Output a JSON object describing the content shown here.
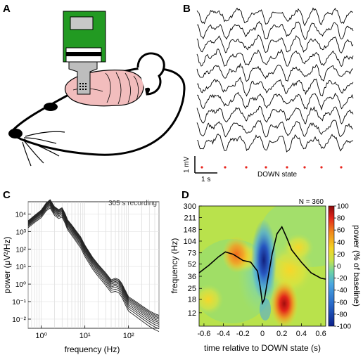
{
  "panels": {
    "a": {
      "letter": "A"
    },
    "b": {
      "letter": "B",
      "scale_y": "1 mV",
      "scale_x": "1 s",
      "event_label": "DOWN state",
      "trace_count": 10,
      "marker_color": "#e8231c"
    },
    "c": {
      "letter": "C"
    },
    "d": {
      "letter": "D"
    }
  },
  "chart_data": [
    {
      "type": "line",
      "panel": "C",
      "annotation": "305 s recording",
      "xlabel": "frequency (Hz)",
      "ylabel": "power (μV²/Hz)",
      "x_scale": "log",
      "y_scale": "log",
      "xlim": [
        0.5,
        500
      ],
      "ylim": [
        0.003,
        50000
      ],
      "xticks": [
        1,
        10,
        100
      ],
      "xtick_labels": [
        "10⁰",
        "10¹",
        "10²"
      ],
      "yticks": [
        0.01,
        0.1,
        1,
        10,
        100,
        1000,
        10000
      ],
      "ytick_labels": [
        "10⁻²",
        "10⁻¹",
        "10⁰",
        "10¹",
        "10²",
        "10³",
        "10⁴"
      ],
      "grid": true,
      "series_count": 10,
      "mean_spectrum": {
        "x": [
          0.5,
          0.7,
          1.0,
          1.3,
          1.6,
          2.0,
          2.5,
          3.0,
          3.5,
          4.0,
          5,
          6,
          8,
          10,
          15,
          20,
          30,
          40,
          50,
          60,
          70,
          80,
          100,
          150,
          200,
          300,
          400,
          500
        ],
        "y": [
          3000,
          6000,
          12000,
          30000,
          45000,
          18000,
          12000,
          15000,
          7000,
          3000,
          1500,
          800,
          300,
          100,
          20,
          8,
          2.5,
          1.0,
          1.2,
          1.0,
          0.6,
          0.3,
          0.1,
          0.05,
          0.03,
          0.015,
          0.01,
          0.008
        ]
      }
    },
    {
      "type": "heatmap",
      "panel": "D",
      "annotation": "N = 360",
      "xlabel": "time relative to DOWN state (s)",
      "ylabel": "frequency (Hz)",
      "colorbar_label": "power (% of baseline)",
      "x_range": [
        -0.65,
        0.65
      ],
      "xticks": [
        -0.6,
        -0.4,
        -0.2,
        0,
        0.2,
        0.4,
        0.6
      ],
      "ytick_labels": [
        "12",
        "18",
        "25",
        "36",
        "52",
        "73",
        "104",
        "148",
        "211",
        "300"
      ],
      "y_scale": "log",
      "ylim": [
        8,
        300
      ],
      "clim": [
        -100,
        100
      ],
      "colorbar_ticks": [
        -100,
        -80,
        -60,
        -40,
        -20,
        0,
        20,
        40,
        60,
        80,
        100
      ],
      "blobs": [
        {
          "t": 0.0,
          "f": 60,
          "value": -100
        },
        {
          "t": -0.3,
          "f": 65,
          "value": 50
        },
        {
          "t": 0.2,
          "f": 20,
          "value": 100
        },
        {
          "t": 0.4,
          "f": 40,
          "value": 25
        },
        {
          "t": -0.45,
          "f": 22,
          "value": 25
        }
      ],
      "overlay_lfp": {
        "t": [
          -0.65,
          -0.55,
          -0.45,
          -0.38,
          -0.3,
          -0.2,
          -0.12,
          -0.05,
          -0.02,
          0.0,
          0.02,
          0.05,
          0.1,
          0.15,
          0.2,
          0.25,
          0.3,
          0.4,
          0.5,
          0.6,
          0.65
        ],
        "f": [
          40,
          50,
          65,
          75,
          70,
          58,
          55,
          42,
          25,
          16,
          18,
          30,
          70,
          130,
          160,
          115,
          80,
          55,
          40,
          34,
          33
        ]
      }
    }
  ]
}
